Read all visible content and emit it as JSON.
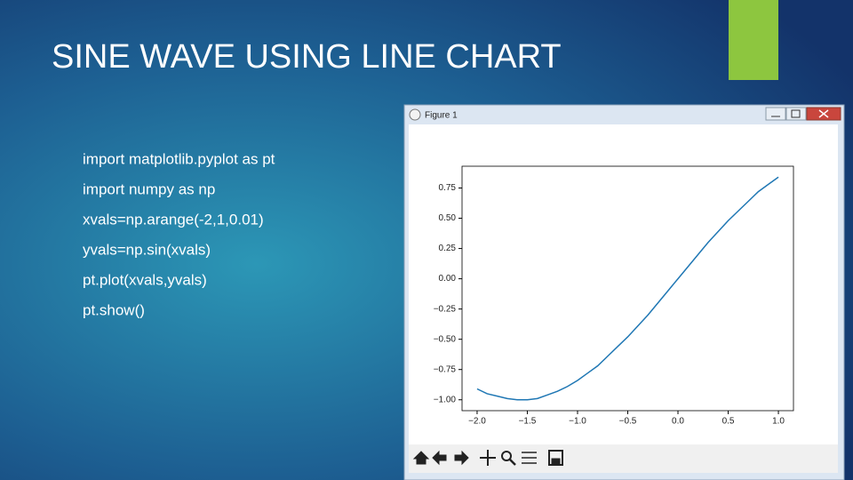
{
  "slide": {
    "title": "SINE WAVE USING LINE CHART",
    "code": [
      "import matplotlib.pyplot as pt",
      "import numpy as np",
      "xvals=np.arange(-2,1,0.01)",
      "yvals=np.sin(xvals)",
      "pt.plot(xvals,yvals)",
      "pt.show()"
    ]
  },
  "window": {
    "title": "Figure 1"
  },
  "chart_data": {
    "type": "line",
    "x": [
      -2.0,
      -1.9,
      -1.8,
      -1.7,
      -1.6,
      -1.5,
      -1.4,
      -1.3,
      -1.2,
      -1.1,
      -1.0,
      -0.9,
      -0.8,
      -0.7,
      -0.6,
      -0.5,
      -0.4,
      -0.3,
      -0.2,
      -0.1,
      0.0,
      0.1,
      0.2,
      0.3,
      0.4,
      0.5,
      0.6,
      0.7,
      0.8,
      0.9,
      1.0
    ],
    "values": [
      -0.91,
      -0.95,
      -0.97,
      -0.99,
      -1.0,
      -1.0,
      -0.99,
      -0.96,
      -0.93,
      -0.89,
      -0.84,
      -0.78,
      -0.72,
      -0.64,
      -0.56,
      -0.48,
      -0.39,
      -0.3,
      -0.2,
      -0.1,
      0.0,
      0.1,
      0.2,
      0.3,
      0.39,
      0.48,
      0.56,
      0.64,
      0.72,
      0.78,
      0.84
    ],
    "color": "#1f77b4",
    "xlim": [
      -2.15,
      1.15
    ],
    "ylim": [
      -1.09,
      0.93
    ],
    "xticks": [
      {
        "value": -2,
        "label": "−2.0"
      },
      {
        "value": -1.5,
        "label": "−1.5"
      },
      {
        "value": -1,
        "label": "−1.0"
      },
      {
        "value": -0.5,
        "label": "−0.5"
      },
      {
        "value": 0,
        "label": "0.0"
      },
      0.5,
      {
        "value": 1,
        "label": "1.0"
      }
    ],
    "yticks": [
      {
        "value": -1,
        "label": "−1.00"
      },
      {
        "value": -0.75,
        "label": "−0.75"
      },
      {
        "value": -0.5,
        "label": "−0.50"
      },
      {
        "value": -0.25,
        "label": "−0.25"
      },
      {
        "value": 0,
        "label": "0.00"
      },
      0.25,
      {
        "value": 0.5,
        "label": "0.50"
      },
      0.75
    ],
    "grid": false
  }
}
